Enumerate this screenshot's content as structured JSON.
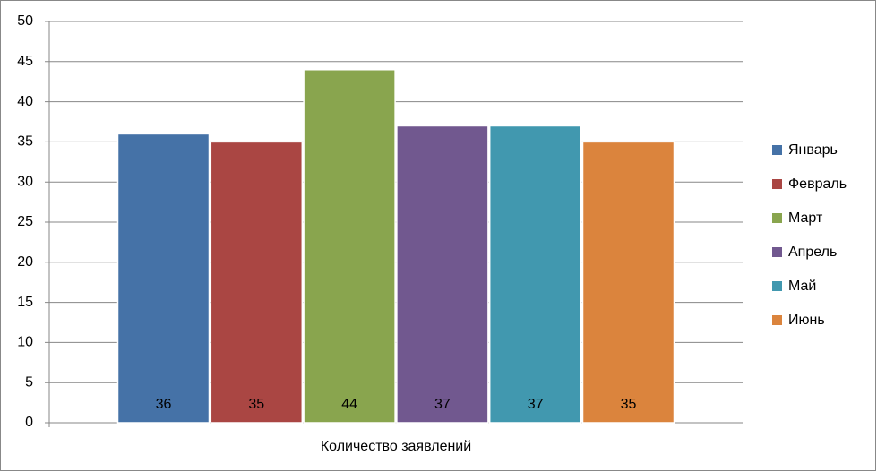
{
  "chart_data": {
    "type": "bar",
    "categories": [
      "Количество заявлений"
    ],
    "series": [
      {
        "name": "Январь",
        "color": "#4572a7",
        "values": [
          36
        ]
      },
      {
        "name": "Февраль",
        "color": "#aa4643",
        "values": [
          35
        ]
      },
      {
        "name": "Март",
        "color": "#89a54e",
        "values": [
          44
        ]
      },
      {
        "name": "Апрель",
        "color": "#71588f",
        "values": [
          37
        ]
      },
      {
        "name": "Май",
        "color": "#4198af",
        "values": [
          37
        ]
      },
      {
        "name": "Июнь",
        "color": "#db843d",
        "values": [
          35
        ]
      }
    ],
    "ylim": [
      0,
      50
    ],
    "yticks": [
      0,
      5,
      10,
      15,
      20,
      25,
      30,
      35,
      40,
      45,
      50
    ],
    "grid": true,
    "legend": "right"
  }
}
